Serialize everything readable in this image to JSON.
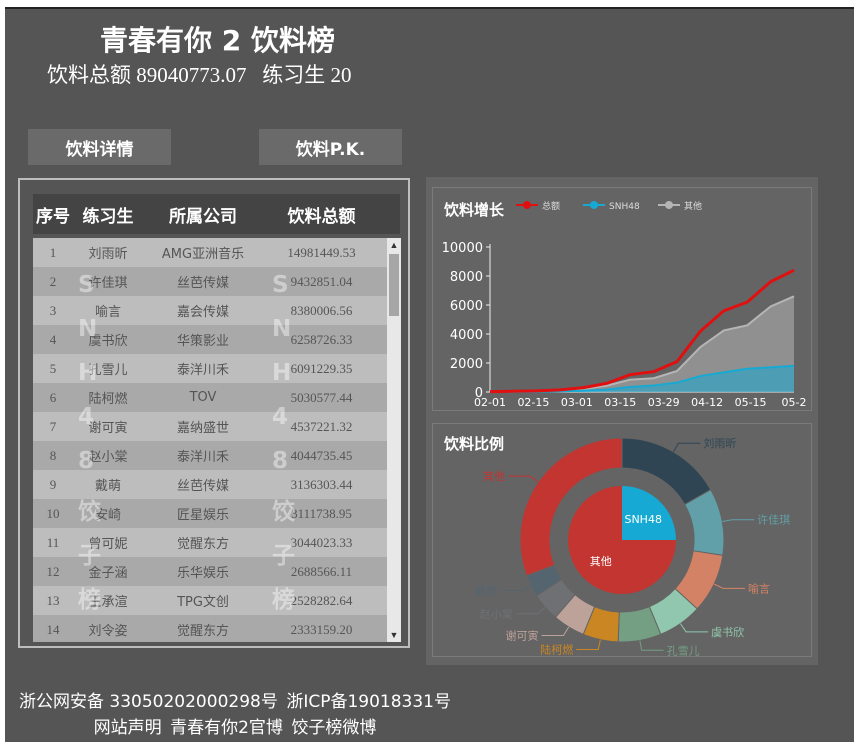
{
  "header": {
    "title": "青春有你 2 饮料榜",
    "total_label": "饮料总额",
    "total_value": "89040773.07",
    "trainee_label": "练习生",
    "trainee_count": "20"
  },
  "nav": {
    "detail_label": "饮料详情",
    "pk_label": "饮料P.K."
  },
  "table": {
    "columns": [
      "序号",
      "练习生",
      "所属公司",
      "饮料总额"
    ],
    "rows": [
      [
        "1",
        "刘雨昕",
        "AMG亚洲音乐",
        "14981449.53"
      ],
      [
        "2",
        "许佳琪",
        "丝芭传媒",
        "9432851.04"
      ],
      [
        "3",
        "喻言",
        "嘉会传媒",
        "8380006.56"
      ],
      [
        "4",
        "虞书欣",
        "华策影业",
        "6258726.33"
      ],
      [
        "5",
        "孔雪儿",
        "泰洋川禾",
        "6091229.35"
      ],
      [
        "6",
        "陆柯燃",
        "TOV",
        "5030577.44"
      ],
      [
        "7",
        "谢可寅",
        "嘉纳盛世",
        "4537221.32"
      ],
      [
        "8",
        "赵小棠",
        "泰洋川禾",
        "4044735.45"
      ],
      [
        "9",
        "戴萌",
        "丝芭传媒",
        "3136303.44"
      ],
      [
        "10",
        "安崎",
        "匠星娱乐",
        "3111738.95"
      ],
      [
        "11",
        "曾可妮",
        "觉醒东方",
        "3044023.33"
      ],
      [
        "12",
        "金子涵",
        "乐华娱乐",
        "2688566.11"
      ],
      [
        "13",
        "王承渲",
        "TPG文创",
        "2528282.64"
      ],
      [
        "14",
        "刘令姿",
        "觉醒东方",
        "2333159.20"
      ]
    ],
    "watermark": [
      "S",
      "N",
      "H",
      "4",
      "8",
      "饺",
      "子",
      "榜"
    ]
  },
  "growth_chart": {
    "title": "饮料增长",
    "chart_data": {
      "type": "area",
      "legend": [
        "总额",
        "SNH48",
        "其他"
      ],
      "legend_position": "top",
      "colors": {
        "总额": "#e01010",
        "SNH48": "#15a9d3",
        "其他": "#b5b5b5"
      },
      "x_ticks": [
        "02-01",
        "02-15",
        "03-01",
        "03-15",
        "03-29",
        "04-12",
        "05-15",
        "05-2"
      ],
      "y_ticks": [
        "0",
        "2000",
        "4000",
        "6000",
        "8000",
        "10000"
      ],
      "ylim": [
        0,
        10000
      ],
      "x": [
        "02-01",
        "02-15",
        "03-01",
        "03-15",
        "03-29",
        "04-05",
        "04-12",
        "04-19",
        "04-26",
        "05-01",
        "05-08",
        "05-15",
        "05-22",
        "05-29"
      ],
      "series": [
        {
          "name": "总额",
          "values": [
            30,
            50,
            80,
            150,
            300,
            600,
            1200,
            1400,
            2100,
            4200,
            5600,
            6200,
            7600,
            8400
          ]
        },
        {
          "name": "SNH48",
          "values": [
            5,
            10,
            20,
            50,
            90,
            160,
            350,
            450,
            650,
            1100,
            1350,
            1600,
            1700,
            1800
          ]
        },
        {
          "name": "其他",
          "values": [
            25,
            40,
            60,
            100,
            210,
            440,
            850,
            950,
            1450,
            3100,
            4250,
            4600,
            5900,
            6600
          ]
        }
      ]
    }
  },
  "ratio_chart": {
    "title": "饮料比例",
    "chart_data": {
      "type": "pie",
      "inner": [
        {
          "label": "SNH48",
          "value": 25,
          "color": "#15a9d3"
        },
        {
          "label": "其他",
          "value": 75,
          "color": "#c23531"
        }
      ],
      "outer": [
        {
          "label": "刘雨昕",
          "value": 16.8,
          "color": "#2f4554"
        },
        {
          "label": "许佳琪",
          "value": 10.6,
          "color": "#61a0a8"
        },
        {
          "label": "喻言",
          "value": 9.4,
          "color": "#d48265"
        },
        {
          "label": "虞书欣",
          "value": 7.0,
          "color": "#91c7ae"
        },
        {
          "label": "孔雪儿",
          "value": 6.8,
          "color": "#749f83"
        },
        {
          "label": "陆柯燃",
          "value": 5.6,
          "color": "#ca8622"
        },
        {
          "label": "谢可寅",
          "value": 5.1,
          "color": "#bda29a"
        },
        {
          "label": "赵小棠",
          "value": 4.5,
          "color": "#6e7074"
        },
        {
          "label": "戴萌",
          "value": 3.5,
          "color": "#546570"
        },
        {
          "label": "其他",
          "value": 30.7,
          "color": "#c23531"
        }
      ]
    }
  },
  "footer": {
    "beian_police": "浙公网安备 33050202000298号",
    "beian_icp": "浙ICP备19018331号",
    "link_statement": "网站声明",
    "link_official": "青春有你2官博",
    "link_weibo": "饺子榜微博"
  }
}
